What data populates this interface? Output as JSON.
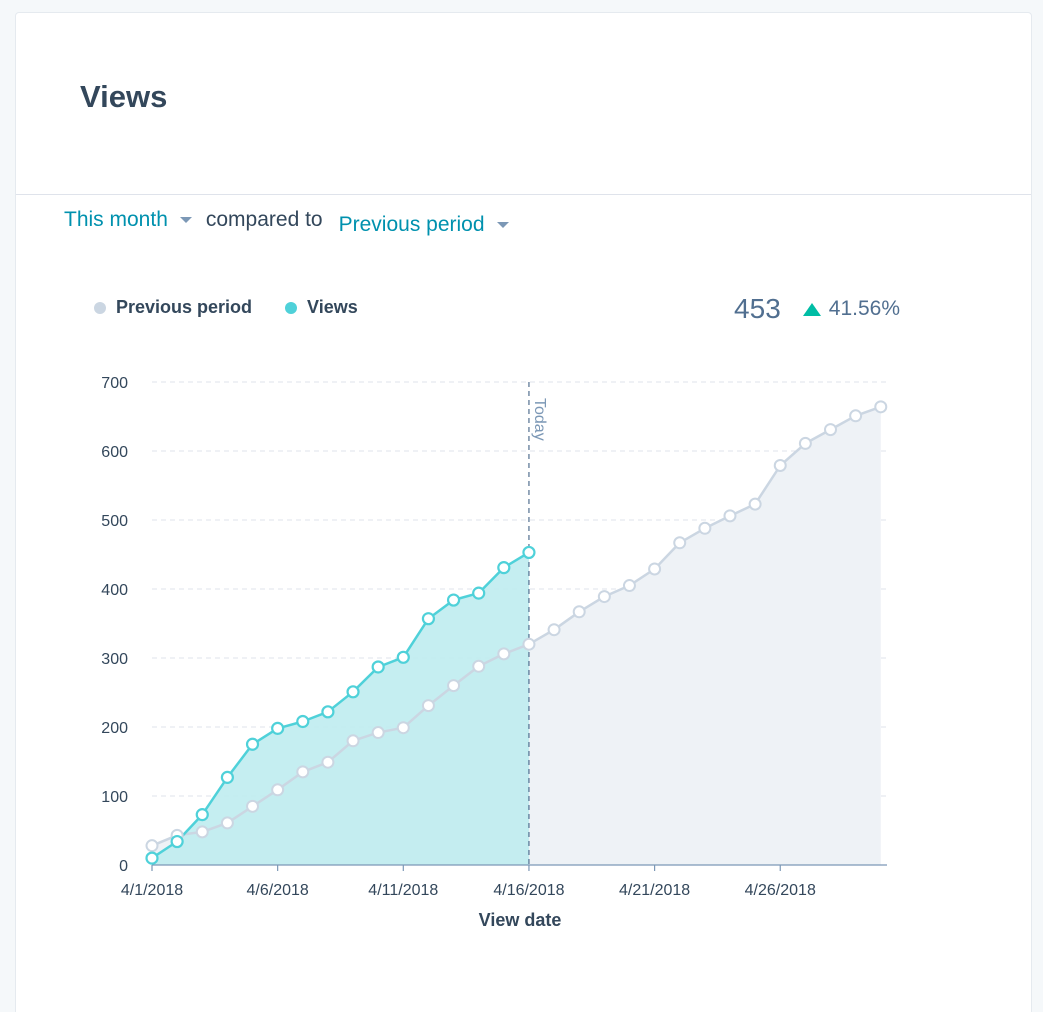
{
  "card": {
    "title": "Views"
  },
  "filters": {
    "range_label": "This month",
    "separator": "compared to",
    "compare_label": "Previous period"
  },
  "summary": {
    "total": "453",
    "change_pct": "41.56%",
    "change_direction": "up"
  },
  "colors": {
    "views": "#4fd1d9",
    "previous": "#cbd6e2",
    "views_fill": "#bfecf0",
    "previous_fill": "#eef2f6",
    "accent_link": "#0091ae",
    "increase": "#00bda5"
  },
  "icons": {
    "caret": "caret-down-icon",
    "arrow": "triangle-up-icon"
  },
  "chart_data": {
    "type": "line",
    "title": "",
    "xlabel": "View date",
    "ylabel": "",
    "ylim": [
      0,
      700
    ],
    "yticks": [
      0,
      100,
      200,
      300,
      400,
      500,
      600,
      700
    ],
    "x_start": "4/1/2018",
    "x_ticks": [
      "4/1/2018",
      "4/6/2018",
      "4/11/2018",
      "4/16/2018",
      "4/21/2018",
      "4/26/2018"
    ],
    "legend_position": "top-left",
    "grid": true,
    "annotations": [
      {
        "type": "vertical-line",
        "x": "4/16/2018",
        "label": "Today"
      }
    ],
    "series": [
      {
        "name": "Previous period",
        "values": [
          28,
          43,
          48,
          61,
          85,
          109,
          135,
          149,
          180,
          192,
          199,
          231,
          260,
          288,
          306,
          320,
          341,
          367,
          389,
          405,
          429,
          467,
          488,
          506,
          523,
          579,
          611,
          631,
          651,
          664
        ]
      },
      {
        "name": "Views",
        "values": [
          10,
          34,
          73,
          127,
          175,
          198,
          208,
          222,
          251,
          287,
          301,
          357,
          384,
          394,
          431,
          453
        ]
      }
    ]
  }
}
